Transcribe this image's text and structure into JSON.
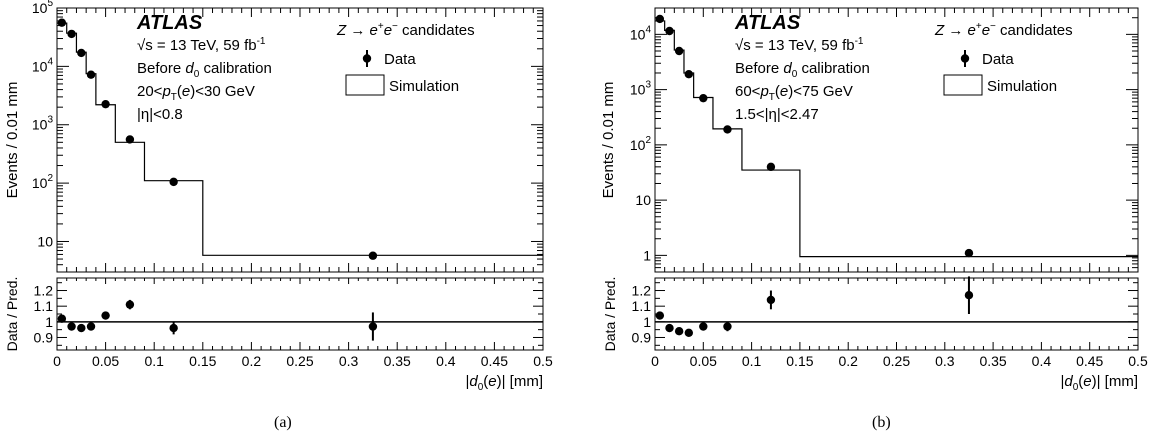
{
  "chart_data": [
    {
      "type": "step+scatter",
      "label": "(a)",
      "atlas": "ATLAS",
      "energy_prefix": "√s = 13 TeV, 59 fb",
      "energy_sup": "-1",
      "calibration": "Before d0 calibration",
      "pt_range": "20<pT(e)<30 GeV",
      "eta_range": "|η|<0.8",
      "legend_title": "Z → e+e− candidates",
      "legend_data": "Data",
      "legend_sim": "Simulation",
      "ylabel": "Events / 0.01 mm",
      "ratio_ylabel": "Data / Pred.",
      "xlabel": "|d0(e)| [mm]",
      "xlim": [
        0,
        0.5
      ],
      "ylim_log": [
        3,
        100000
      ],
      "y_ticks": [
        10,
        100,
        1000,
        10000,
        100000
      ],
      "y_tick_labels": [
        "10",
        "10^2",
        "10^3",
        "10^4",
        "10^5"
      ],
      "ratio_ylim": [
        0.82,
        1.28
      ],
      "ratio_ticks": [
        0.9,
        1,
        1.1,
        1.2
      ],
      "ratio_tick_labels": [
        "0.9",
        "1",
        "1.1",
        "1.2"
      ],
      "x_ticks": [
        0,
        0.05,
        0.1,
        0.15,
        0.2,
        0.25,
        0.3,
        0.35,
        0.4,
        0.45,
        0.5
      ],
      "x_tick_labels": [
        "0",
        "0.05",
        "0.1",
        "0.15",
        "0.2",
        "0.25",
        "0.3",
        "0.35",
        "0.4",
        "0.45",
        "0.5"
      ],
      "bin_edges": [
        0,
        0.01,
        0.02,
        0.03,
        0.04,
        0.06,
        0.09,
        0.15,
        0.5
      ],
      "simulation": [
        55000,
        37000,
        17500,
        7500,
        2200,
        500,
        110,
        5.8
      ],
      "data": [
        {
          "x": 0.005,
          "y": 56000
        },
        {
          "x": 0.015,
          "y": 36000
        },
        {
          "x": 0.025,
          "y": 17000
        },
        {
          "x": 0.035,
          "y": 7200
        },
        {
          "x": 0.05,
          "y": 2250
        },
        {
          "x": 0.075,
          "y": 560
        },
        {
          "x": 0.12,
          "y": 105
        },
        {
          "x": 0.325,
          "y": 5.7
        }
      ],
      "ratio": [
        {
          "x": 0.005,
          "y": 1.02,
          "err": 0.01
        },
        {
          "x": 0.015,
          "y": 0.97,
          "err": 0.01
        },
        {
          "x": 0.025,
          "y": 0.96,
          "err": 0.01
        },
        {
          "x": 0.035,
          "y": 0.97,
          "err": 0.01
        },
        {
          "x": 0.05,
          "y": 1.04,
          "err": 0.01
        },
        {
          "x": 0.075,
          "y": 1.11,
          "err": 0.03
        },
        {
          "x": 0.12,
          "y": 0.96,
          "err": 0.04
        },
        {
          "x": 0.325,
          "y": 0.97,
          "err": 0.09
        }
      ]
    },
    {
      "type": "step+scatter",
      "label": "(b)",
      "atlas": "ATLAS",
      "energy_prefix": "√s = 13 TeV, 59 fb",
      "energy_sup": "-1",
      "calibration": "Before d0 calibration",
      "pt_range": "60<pT(e)<75 GeV",
      "eta_range": "1.5<|η|<2.47",
      "legend_title": "Z → e+e− candidates",
      "legend_data": "Data",
      "legend_sim": "Simulation",
      "ylabel": "Events / 0.01 mm",
      "ratio_ylabel": "Data / Pred.",
      "xlabel": "|d0(e)| [mm]",
      "xlim": [
        0,
        0.5
      ],
      "ylim_log": [
        0.5,
        30000
      ],
      "y_ticks": [
        1,
        10,
        100,
        1000,
        10000
      ],
      "y_tick_labels": [
        "1",
        "10",
        "10^2",
        "10^3",
        "10^4"
      ],
      "ratio_ylim": [
        0.82,
        1.28
      ],
      "ratio_ticks": [
        0.9,
        1,
        1.1,
        1.2
      ],
      "ratio_tick_labels": [
        "0.9",
        "1",
        "1.1",
        "1.2"
      ],
      "x_ticks": [
        0,
        0.05,
        0.1,
        0.15,
        0.2,
        0.25,
        0.3,
        0.35,
        0.4,
        0.45,
        0.5
      ],
      "x_tick_labels": [
        "0",
        "0.05",
        "0.1",
        "0.15",
        "0.2",
        "0.25",
        "0.3",
        "0.35",
        "0.4",
        "0.45",
        "0.5"
      ],
      "bin_edges": [
        0,
        0.01,
        0.02,
        0.03,
        0.04,
        0.06,
        0.09,
        0.15,
        0.5
      ],
      "simulation": [
        17500,
        11800,
        5200,
        2000,
        720,
        195,
        35,
        0.95
      ],
      "data": [
        {
          "x": 0.005,
          "y": 19000
        },
        {
          "x": 0.015,
          "y": 11500
        },
        {
          "x": 0.025,
          "y": 5000
        },
        {
          "x": 0.035,
          "y": 1900
        },
        {
          "x": 0.05,
          "y": 700
        },
        {
          "x": 0.075,
          "y": 190
        },
        {
          "x": 0.12,
          "y": 40
        },
        {
          "x": 0.325,
          "y": 1.1
        }
      ],
      "ratio": [
        {
          "x": 0.005,
          "y": 1.04,
          "err": 0.01
        },
        {
          "x": 0.015,
          "y": 0.96,
          "err": 0.01
        },
        {
          "x": 0.025,
          "y": 0.94,
          "err": 0.01
        },
        {
          "x": 0.035,
          "y": 0.93,
          "err": 0.01
        },
        {
          "x": 0.05,
          "y": 0.97,
          "err": 0.02
        },
        {
          "x": 0.075,
          "y": 0.97,
          "err": 0.03
        },
        {
          "x": 0.12,
          "y": 1.14,
          "err": 0.06
        },
        {
          "x": 0.325,
          "y": 1.17,
          "err": 0.12
        }
      ]
    }
  ]
}
